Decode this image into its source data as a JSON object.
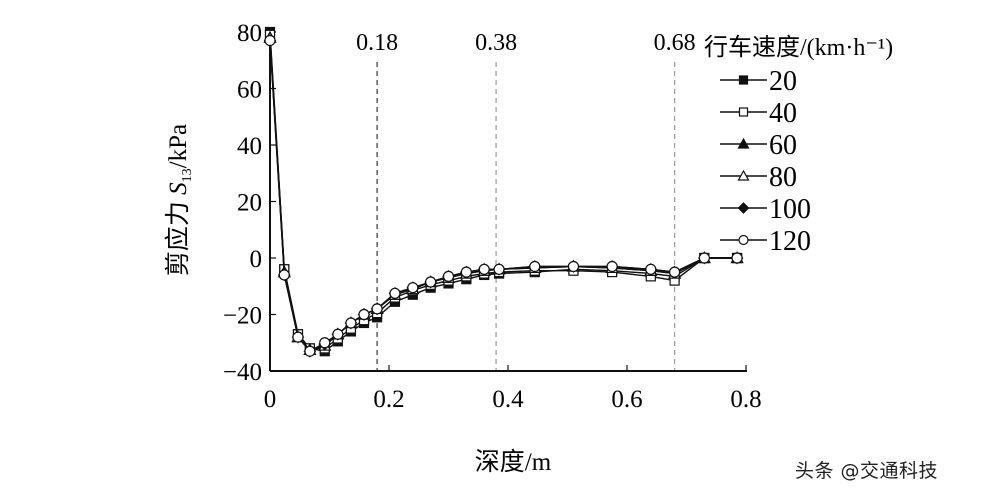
{
  "chart_data": {
    "type": "line",
    "title": "",
    "xlabel": "深度/m",
    "ylabel": "剪应力 S13/kPa",
    "ylabel_parts": {
      "prefix": "剪应力 ",
      "symbol": "S",
      "subscript": "13",
      "unit": "/kPa"
    },
    "xlim": [
      0,
      0.8
    ],
    "ylim": [
      -40,
      80
    ],
    "x_ticks": [
      "0",
      "0.2",
      "0.4",
      "0.6",
      "0.8"
    ],
    "y_ticks": [
      "-40",
      "-20",
      "0",
      "20",
      "40",
      "60",
      "80"
    ],
    "grid": false,
    "legend_title": "行车速度/(km·h⁻¹)",
    "legend_position": "upper right",
    "reference_lines": [
      {
        "x": 0.18,
        "label": "0.18",
        "color": "#333333",
        "style": "dashed"
      },
      {
        "x": 0.38,
        "label": "0.38",
        "color": "#999999",
        "style": "dashed"
      },
      {
        "x": 0.68,
        "label": "0.68",
        "color": "#999999",
        "style": "dashed"
      }
    ],
    "x": [
      0,
      0.024,
      0.047,
      0.067,
      0.092,
      0.114,
      0.136,
      0.158,
      0.18,
      0.21,
      0.24,
      0.27,
      0.3,
      0.33,
      0.36,
      0.385,
      0.445,
      0.51,
      0.575,
      0.64,
      0.68,
      0.73,
      0.785
    ],
    "series": [
      {
        "name": "20",
        "marker": "square-filled",
        "values": [
          80,
          -4,
          -27,
          -32,
          -33,
          -29.5,
          -26,
          -23,
          -21,
          -15.5,
          -13,
          -10.5,
          -9,
          -7.5,
          -6,
          -5.5,
          -5,
          -4,
          -4.5,
          -5.5,
          -6.5,
          0,
          0
        ]
      },
      {
        "name": "40",
        "marker": "square-open",
        "values": [
          79,
          -4,
          -27,
          -32,
          -32,
          -28.5,
          -25,
          -22,
          -19.5,
          -14,
          -11.5,
          -9.5,
          -8,
          -6.5,
          -5.5,
          -5,
          -4.5,
          -4.5,
          -5,
          -6.5,
          -8,
          0,
          0
        ]
      },
      {
        "name": "60",
        "marker": "triangle-filled",
        "values": [
          78,
          -5,
          -28,
          -32.5,
          -31,
          -27,
          -23,
          -20,
          -18,
          -13,
          -11,
          -8.5,
          -7,
          -5.5,
          -4.5,
          -4,
          -3.5,
          -3,
          -3.5,
          -4.5,
          -5.5,
          0,
          0
        ]
      },
      {
        "name": "80",
        "marker": "triangle-open",
        "values": [
          78,
          -5,
          -28,
          -32.5,
          -31,
          -27,
          -23,
          -20,
          -18,
          -13,
          -11,
          -8.5,
          -7,
          -5.5,
          -4.5,
          -4,
          -3.5,
          -3,
          -3.5,
          -4.5,
          -5.5,
          0,
          0
        ]
      },
      {
        "name": "100",
        "marker": "diamond-filled",
        "values": [
          77,
          -6,
          -28,
          -33,
          -30.5,
          -27,
          -23,
          -20,
          -18,
          -12.5,
          -10.5,
          -8.5,
          -6.5,
          -5,
          -4,
          -4,
          -3,
          -3,
          -3,
          -4,
          -5,
          0,
          0
        ]
      },
      {
        "name": "120",
        "marker": "circle-open",
        "values": [
          77,
          -6,
          -28,
          -33,
          -30,
          -27,
          -23,
          -20,
          -18,
          -12.5,
          -10.5,
          -8.5,
          -6.5,
          -5,
          -4,
          -4,
          -3,
          -3,
          -3,
          -4,
          -5,
          0,
          0
        ]
      }
    ]
  },
  "watermark": "头条 @交通科技"
}
